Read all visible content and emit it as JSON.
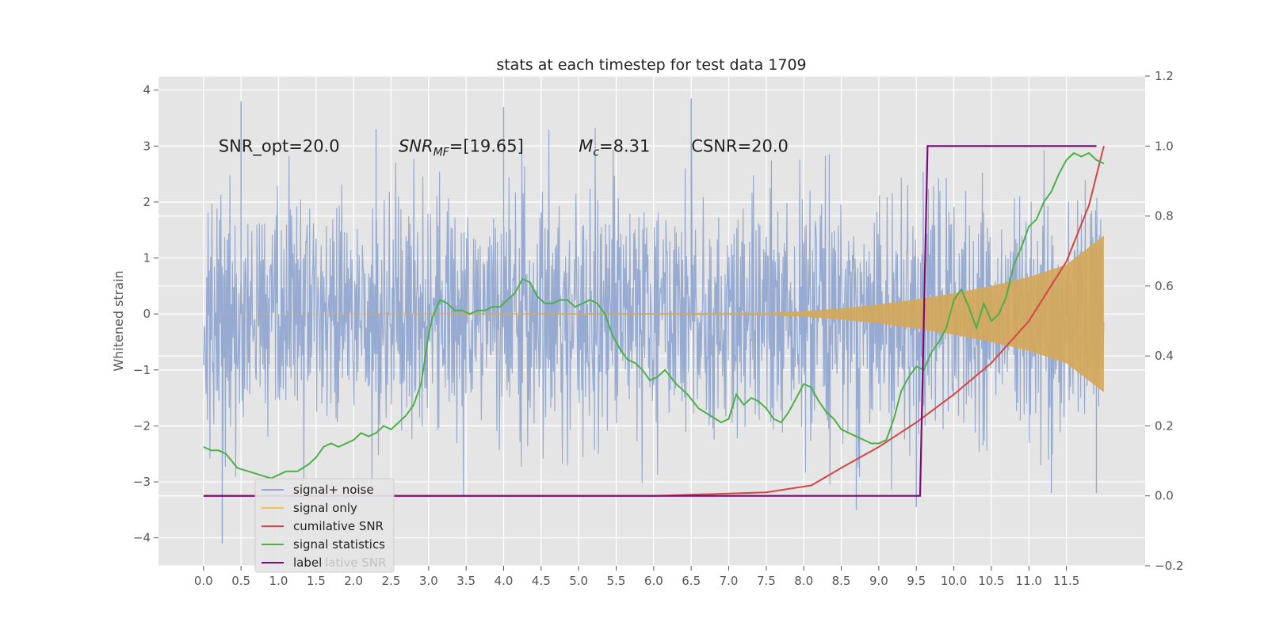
{
  "chart_data": {
    "type": "line",
    "title": "stats at each timestep for test data 1709",
    "xlabel": "",
    "ylabel": "Whitened strain",
    "xlim": [
      -0.6,
      12.55
    ],
    "ylim": [
      -4.5,
      4.25
    ],
    "y2lim": [
      -0.2,
      1.2
    ],
    "grid": true,
    "legend_position": "lower-left",
    "x_ticks": [
      "0.0",
      "0.5",
      "1.0",
      "1.5",
      "2.0",
      "2.5",
      "3.0",
      "3.5",
      "4.0",
      "4.5",
      "5.0",
      "5.5",
      "6.0",
      "6.5",
      "7.0",
      "7.5",
      "8.0",
      "8.5",
      "9.0",
      "9.5",
      "10.0",
      "10.5",
      "11.0",
      "11.5"
    ],
    "y_ticks": [
      "4",
      "3",
      "2",
      "1",
      "0",
      "−1",
      "−2",
      "−3",
      "−4"
    ],
    "y2_ticks": [
      "1.2",
      "1.0",
      "0.8",
      "0.6",
      "0.4",
      "0.2",
      "0.0",
      "−0.2"
    ],
    "annotations": [
      {
        "text": "SNR_opt=20.0",
        "x": 0.2,
        "y": 3.0
      },
      {
        "text": "SNR_MF=[19.65]",
        "x": 2.6,
        "y": 3.0
      },
      {
        "text": "M_c=8.31",
        "x": 5.0,
        "y": 3.0
      },
      {
        "text": "CSNR=20.0",
        "x": 6.5,
        "y": 3.0
      }
    ],
    "legend": [
      {
        "label": "signal+ noise",
        "color": "#92a8d1"
      },
      {
        "label": "signal only",
        "color": "#f2c14e"
      },
      {
        "label": "cumilative SNR",
        "color": "#d64545"
      },
      {
        "label": "signal statistics",
        "color": "#4daf4a"
      },
      {
        "label": "label",
        "color": "#7b0a7b"
      }
    ],
    "legend_ghost_text": "lative SNR",
    "noise": {
      "x_start": 0.0,
      "x_end": 12.0,
      "envelope": 1.6,
      "spikes": [
        [
          0.5,
          3.8
        ],
        [
          0.25,
          -4.1
        ],
        [
          2.3,
          3.3
        ],
        [
          4.0,
          3.7
        ],
        [
          6.5,
          3.85
        ],
        [
          8.7,
          -3.5
        ],
        [
          9.5,
          -3.45
        ],
        [
          11.3,
          -3.2
        ],
        [
          11.9,
          -3.2
        ]
      ]
    },
    "signal_only": {
      "x": [
        0.0,
        7.5,
        8.0,
        8.5,
        9.0,
        9.5,
        10.0,
        10.5,
        11.0,
        11.5,
        12.0
      ],
      "amplitude": [
        0.0,
        0.02,
        0.05,
        0.1,
        0.17,
        0.26,
        0.37,
        0.5,
        0.66,
        0.88,
        1.4
      ]
    },
    "cumulative_snr": {
      "x": [
        0.0,
        2.0,
        4.0,
        6.0,
        7.5,
        8.1,
        8.5,
        9.0,
        9.5,
        10.0,
        10.5,
        11.0,
        11.5,
        11.8,
        12.0
      ],
      "y": [
        0.0,
        0.0,
        0.0,
        0.0,
        0.01,
        0.03,
        0.08,
        0.14,
        0.21,
        0.29,
        0.38,
        0.5,
        0.67,
        0.83,
        1.0
      ]
    },
    "signal_statistics": {
      "x": [
        0.0,
        0.1,
        0.2,
        0.3,
        0.45,
        0.6,
        0.75,
        0.9,
        1.0,
        1.1,
        1.25,
        1.4,
        1.5,
        1.6,
        1.7,
        1.8,
        1.9,
        2.0,
        2.1,
        2.2,
        2.3,
        2.4,
        2.5,
        2.6,
        2.7,
        2.8,
        2.9,
        3.0,
        3.05,
        3.15,
        3.25,
        3.35,
        3.45,
        3.55,
        3.65,
        3.75,
        3.85,
        3.95,
        4.05,
        4.15,
        4.25,
        4.35,
        4.45,
        4.55,
        4.65,
        4.75,
        4.85,
        4.95,
        5.05,
        5.15,
        5.25,
        5.35,
        5.45,
        5.55,
        5.65,
        5.75,
        5.85,
        5.95,
        6.05,
        6.15,
        6.3,
        6.45,
        6.6,
        6.75,
        6.9,
        7.0,
        7.1,
        7.2,
        7.3,
        7.4,
        7.5,
        7.6,
        7.7,
        7.8,
        7.9,
        8.0,
        8.1,
        8.2,
        8.3,
        8.4,
        8.5,
        8.6,
        8.7,
        8.8,
        8.9,
        9.0,
        9.1,
        9.2,
        9.3,
        9.4,
        9.5,
        9.6,
        9.7,
        9.8,
        9.9,
        10.0,
        10.1,
        10.2,
        10.3,
        10.4,
        10.5,
        10.6,
        10.7,
        10.8,
        10.9,
        11.0,
        11.1,
        11.2,
        11.3,
        11.4,
        11.5,
        11.6,
        11.7,
        11.8,
        11.9,
        12.0
      ],
      "y": [
        0.14,
        0.13,
        0.13,
        0.12,
        0.08,
        0.07,
        0.06,
        0.05,
        0.06,
        0.07,
        0.07,
        0.09,
        0.11,
        0.14,
        0.15,
        0.14,
        0.15,
        0.16,
        0.18,
        0.17,
        0.18,
        0.2,
        0.19,
        0.21,
        0.23,
        0.26,
        0.32,
        0.46,
        0.51,
        0.56,
        0.55,
        0.53,
        0.53,
        0.52,
        0.53,
        0.53,
        0.54,
        0.54,
        0.56,
        0.58,
        0.62,
        0.61,
        0.57,
        0.55,
        0.55,
        0.56,
        0.56,
        0.54,
        0.55,
        0.56,
        0.55,
        0.52,
        0.46,
        0.42,
        0.39,
        0.38,
        0.36,
        0.33,
        0.34,
        0.36,
        0.32,
        0.29,
        0.25,
        0.23,
        0.21,
        0.22,
        0.29,
        0.26,
        0.28,
        0.27,
        0.25,
        0.22,
        0.21,
        0.24,
        0.28,
        0.32,
        0.31,
        0.27,
        0.24,
        0.22,
        0.19,
        0.18,
        0.17,
        0.16,
        0.15,
        0.15,
        0.16,
        0.22,
        0.3,
        0.34,
        0.37,
        0.36,
        0.41,
        0.44,
        0.48,
        0.56,
        0.59,
        0.54,
        0.48,
        0.55,
        0.5,
        0.52,
        0.57,
        0.66,
        0.71,
        0.77,
        0.79,
        0.84,
        0.87,
        0.92,
        0.96,
        0.98,
        0.97,
        0.98,
        0.96,
        0.95
      ]
    },
    "label": {
      "x": [
        0.0,
        9.55,
        9.65,
        11.9
      ],
      "y": [
        0.0,
        0.0,
        1.0,
        1.0
      ]
    }
  }
}
